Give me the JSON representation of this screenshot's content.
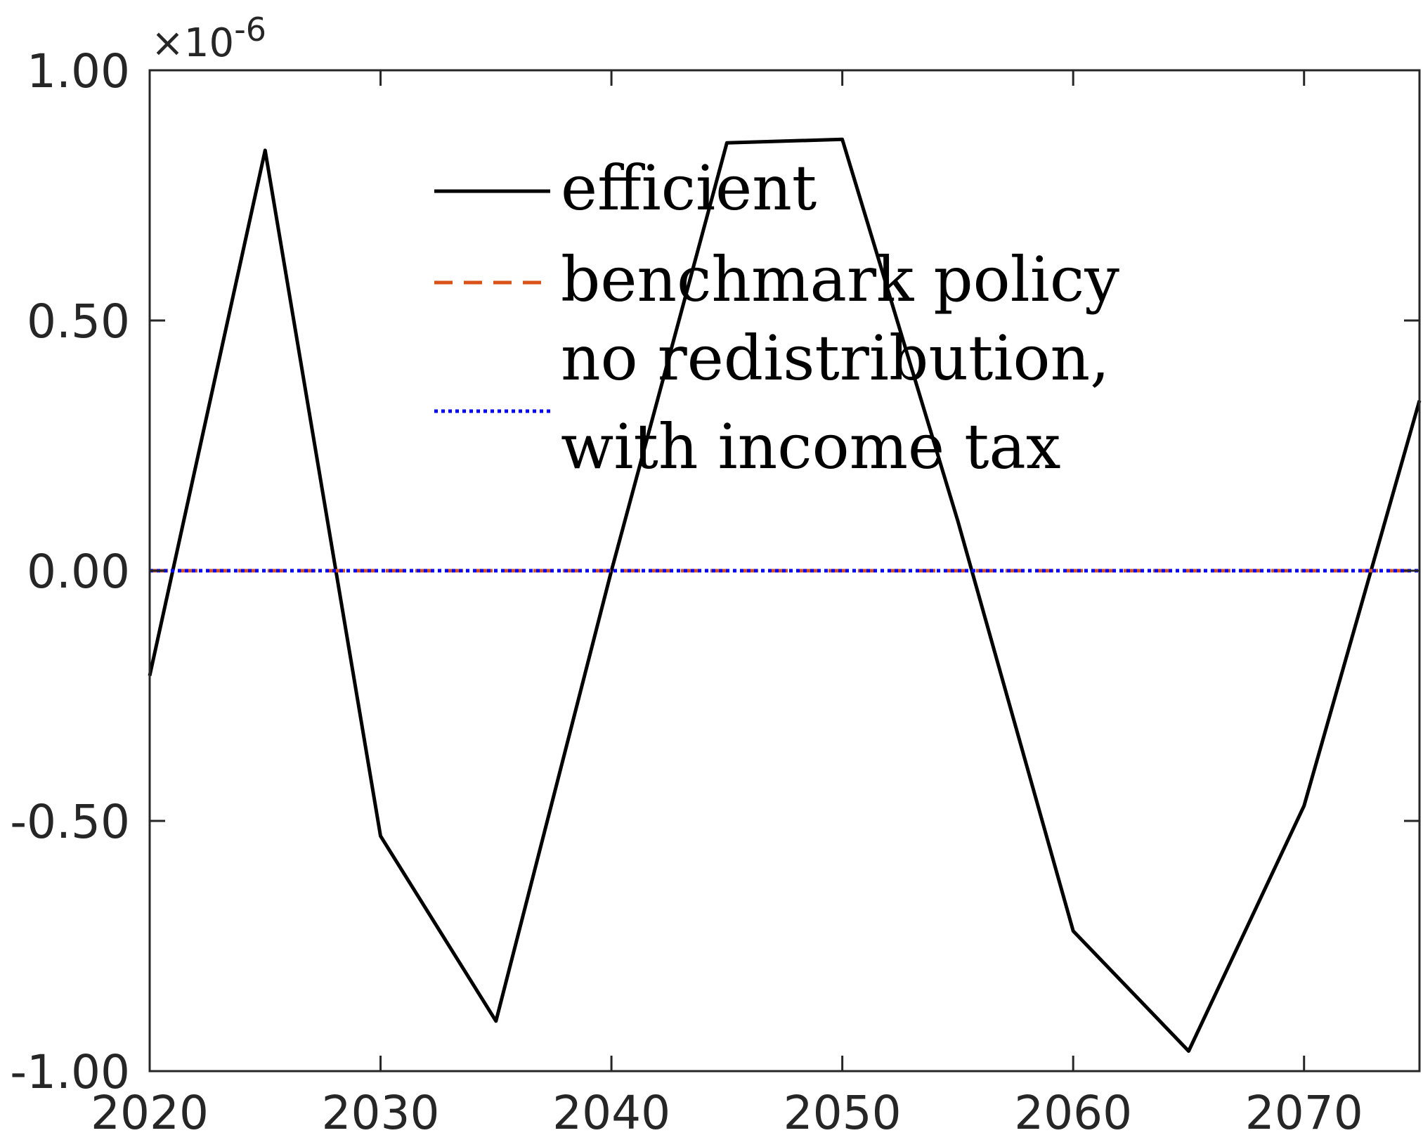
{
  "chart_data": {
    "type": "line",
    "title": "",
    "xlabel": "",
    "ylabel": "",
    "xlim": [
      2020,
      2075
    ],
    "ylim": [
      -1.0,
      1.0
    ],
    "y_scale_factor": "×10",
    "y_scale_exponent": "-6",
    "x_ticks": [
      2020,
      2030,
      2040,
      2050,
      2060,
      2070
    ],
    "x_tick_labels": [
      "2020",
      "2030",
      "2040",
      "2050",
      "2060",
      "2070"
    ],
    "y_ticks": [
      -1.0,
      -0.5,
      0.0,
      0.5,
      1.0
    ],
    "y_tick_labels": [
      "-1.00",
      "-0.50",
      "0.00",
      "0.50",
      "1.00"
    ],
    "grid": false,
    "legend_position": "top-center",
    "series": [
      {
        "name": "efficient",
        "color": "#000000",
        "style": "solid",
        "x": [
          2020,
          2025,
          2030,
          2035,
          2040,
          2045,
          2050,
          2055,
          2060,
          2065,
          2070,
          2075
        ],
        "y": [
          -0.21,
          0.84,
          -0.53,
          -0.9,
          0.0,
          0.855,
          0.862,
          0.1,
          -0.72,
          -0.96,
          -0.47,
          0.34
        ]
      },
      {
        "name": "benchmark policy",
        "color": "#d95319",
        "style": "dashed",
        "x": [
          2020,
          2075
        ],
        "y": [
          0.0,
          0.0
        ]
      },
      {
        "name_lines": [
          "no redistribution,",
          "with income tax"
        ],
        "color": "#0000ff",
        "style": "dotted",
        "x": [
          2020,
          2075
        ],
        "y": [
          0.0,
          0.0
        ]
      }
    ]
  }
}
